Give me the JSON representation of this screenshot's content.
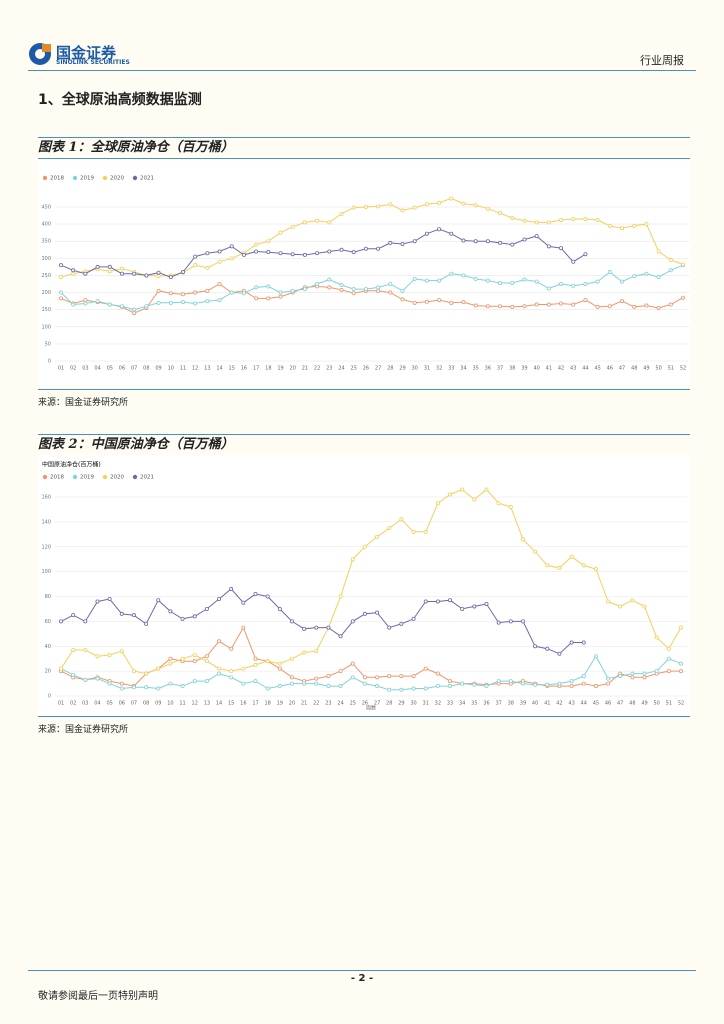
{
  "header": {
    "logo_cn": "国金证券",
    "logo_en": "SINOLINK SECURITIES",
    "report_type": "行业周报"
  },
  "section_title": "1、全球原油高频数据监测",
  "figures": [
    {
      "caption": "图表 1：全球原油净仓（百万桶）",
      "source": "来源：国金证券研究所"
    },
    {
      "caption": "图表 2：中国原油净仓（百万桶）",
      "source": "来源：国金证券研究所"
    }
  ],
  "footer": {
    "page": "- 2 -",
    "disclaimer": "敬请参阅最后一页特别声明"
  },
  "chart_data": [
    {
      "type": "line",
      "categories": [
        "01",
        "02",
        "03",
        "04",
        "05",
        "06",
        "07",
        "08",
        "09",
        "10",
        "11",
        "12",
        "13",
        "14",
        "15",
        "16",
        "17",
        "18",
        "19",
        "20",
        "21",
        "22",
        "23",
        "24",
        "25",
        "26",
        "27",
        "28",
        "29",
        "30",
        "31",
        "32",
        "33",
        "34",
        "35",
        "36",
        "37",
        "38",
        "39",
        "40",
        "41",
        "42",
        "43",
        "44",
        "45",
        "46",
        "47",
        "48",
        "49",
        "50",
        "51",
        "52"
      ],
      "ylim": [
        0,
        450
      ],
      "yticks": [
        0,
        50,
        100,
        150,
        200,
        250,
        300,
        350,
        400,
        450
      ],
      "grid": true,
      "legend": "top-left",
      "series": [
        {
          "name": "2018",
          "color": "#f0956a",
          "values": [
            183,
            168,
            178,
            172,
            165,
            158,
            140,
            155,
            205,
            198,
            195,
            200,
            205,
            225,
            200,
            205,
            183,
            183,
            188,
            200,
            215,
            218,
            215,
            208,
            198,
            205,
            205,
            200,
            180,
            170,
            173,
            178,
            170,
            172,
            162,
            160,
            160,
            158,
            160,
            165,
            165,
            168,
            165,
            178,
            158,
            160,
            175,
            158,
            162,
            155,
            165,
            185
          ]
        },
        {
          "name": "2019",
          "color": "#7fd3d8",
          "values": [
            200,
            165,
            168,
            175,
            165,
            160,
            150,
            160,
            170,
            170,
            172,
            168,
            175,
            178,
            200,
            198,
            215,
            218,
            200,
            205,
            210,
            225,
            238,
            222,
            210,
            210,
            215,
            225,
            205,
            240,
            235,
            235,
            255,
            250,
            240,
            235,
            228,
            228,
            238,
            232,
            212,
            225,
            220,
            225,
            232,
            260,
            232,
            248,
            255,
            245,
            265,
            280
          ]
        },
        {
          "name": "2020",
          "color": "#f5cf5a",
          "values": [
            245,
            255,
            262,
            268,
            262,
            270,
            260,
            250,
            248,
            250,
            258,
            280,
            272,
            290,
            300,
            315,
            340,
            350,
            375,
            392,
            405,
            410,
            405,
            430,
            448,
            450,
            452,
            458,
            440,
            448,
            458,
            462,
            475,
            460,
            455,
            445,
            432,
            418,
            410,
            405,
            405,
            412,
            415,
            415,
            412,
            395,
            388,
            395,
            400,
            320,
            295,
            282
          ]
        },
        {
          "name": "2021",
          "color": "#6b6aa8",
          "values": [
            280,
            265,
            255,
            275,
            275,
            255,
            255,
            250,
            258,
            245,
            260,
            305,
            315,
            320,
            335,
            310,
            320,
            318,
            315,
            312,
            310,
            315,
            320,
            325,
            318,
            328,
            328,
            345,
            342,
            350,
            372,
            385,
            372,
            352,
            350,
            350,
            345,
            340,
            355,
            365,
            335,
            330,
            290,
            312,
            null,
            null,
            null,
            null,
            null,
            null,
            null,
            null
          ]
        }
      ]
    },
    {
      "type": "line",
      "title": "中国原油净仓(百万桶)",
      "x_label": "周数",
      "categories": [
        "01",
        "02",
        "03",
        "04",
        "05",
        "06",
        "07",
        "08",
        "09",
        "10",
        "11",
        "12",
        "13",
        "14",
        "15",
        "16",
        "17",
        "18",
        "19",
        "20",
        "21",
        "22",
        "23",
        "24",
        "25",
        "26",
        "27",
        "28",
        "29",
        "30",
        "31",
        "32",
        "33",
        "34",
        "35",
        "36",
        "37",
        "38",
        "39",
        "40",
        "41",
        "42",
        "43",
        "44",
        "45",
        "46",
        "47",
        "48",
        "49",
        "50",
        "51",
        "52"
      ],
      "ylim": [
        0,
        160
      ],
      "yticks": [
        0,
        20,
        40,
        60,
        80,
        100,
        120,
        140,
        160
      ],
      "grid": true,
      "legend": "top-left",
      "series": [
        {
          "name": "2018",
          "color": "#f0956a",
          "values": [
            20,
            15,
            13,
            15,
            12,
            10,
            8,
            18,
            22,
            30,
            28,
            28,
            32,
            44,
            38,
            55,
            30,
            28,
            22,
            15,
            12,
            14,
            16,
            20,
            26,
            15,
            15,
            16,
            16,
            16,
            22,
            18,
            12,
            10,
            10,
            9,
            10,
            10,
            12,
            10,
            8,
            8,
            8,
            10,
            8,
            10,
            18,
            15,
            15,
            18,
            20,
            20
          ]
        },
        {
          "name": "2019",
          "color": "#7fd3d8",
          "values": [
            22,
            17,
            13,
            14,
            10,
            6,
            7,
            7,
            6,
            10,
            8,
            12,
            12,
            18,
            15,
            10,
            12,
            6,
            8,
            10,
            10,
            10,
            8,
            8,
            15,
            10,
            8,
            5,
            5,
            6,
            6,
            8,
            8,
            10,
            9,
            8,
            12,
            12,
            10,
            9,
            9,
            10,
            12,
            16,
            32,
            14,
            16,
            18,
            18,
            20,
            30,
            26
          ]
        },
        {
          "name": "2020",
          "color": "#f5cf5a",
          "values": [
            22,
            37,
            37,
            32,
            33,
            36,
            20,
            18,
            22,
            26,
            30,
            33,
            28,
            22,
            20,
            22,
            25,
            28,
            26,
            30,
            35,
            36,
            55,
            80,
            110,
            120,
            128,
            135,
            142,
            132,
            132,
            155,
            162,
            166,
            158,
            166,
            155,
            152,
            126,
            116,
            105,
            103,
            112,
            105,
            102,
            76,
            72,
            77,
            72,
            47,
            38,
            55
          ]
        },
        {
          "name": "2021",
          "color": "#6b6aa8",
          "values": [
            60,
            65,
            60,
            76,
            78,
            66,
            65,
            58,
            77,
            68,
            62,
            64,
            70,
            78,
            86,
            75,
            82,
            80,
            70,
            60,
            54,
            55,
            55,
            48,
            60,
            66,
            67,
            55,
            58,
            62,
            76,
            76,
            77,
            70,
            72,
            74,
            59,
            60,
            60,
            40,
            38,
            34,
            43,
            43,
            null,
            null,
            null,
            null,
            null,
            null,
            null,
            null
          ]
        }
      ]
    }
  ]
}
